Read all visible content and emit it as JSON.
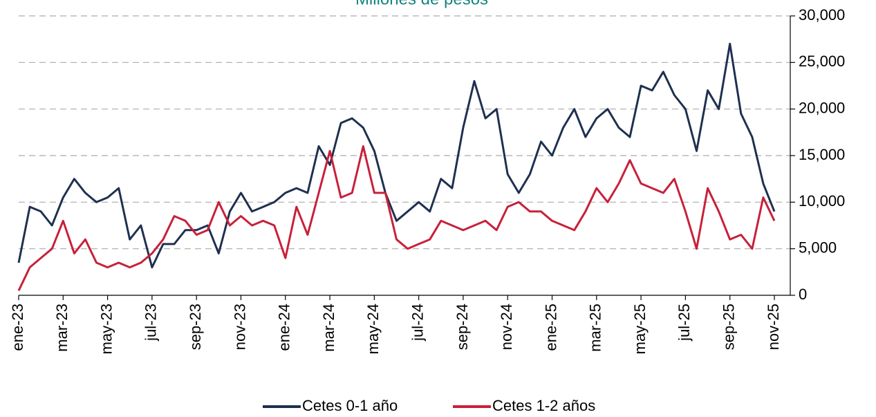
{
  "chart_data": {
    "type": "line",
    "title": "Millones de pesos",
    "categories": [
      "ene-23",
      null,
      null,
      null,
      "mar-23",
      null,
      null,
      null,
      "may-23",
      null,
      null,
      null,
      "jul-23",
      null,
      null,
      null,
      "sep-23",
      null,
      null,
      null,
      "nov-23",
      null,
      null,
      null,
      "ene-24",
      null,
      null,
      null,
      "mar-24",
      null,
      null,
      null,
      "may-24",
      null,
      null,
      null,
      "jul-24",
      null,
      null,
      null,
      "sep-24",
      null,
      null,
      null,
      "nov-24",
      null,
      null,
      null,
      "ene-25",
      null,
      null,
      null,
      "mar-25",
      null,
      null,
      null,
      "may-25",
      null,
      null,
      null,
      "jul-25",
      null,
      null,
      null,
      "sep-25",
      null,
      null,
      null,
      "nov-25"
    ],
    "series": [
      {
        "name": "Cetes 0-1 año",
        "color": "#1f3050",
        "values": [
          3500,
          9500,
          9000,
          7500,
          10500,
          12500,
          11000,
          10000,
          10500,
          11500,
          6000,
          7500,
          3000,
          5500,
          5500,
          7000,
          7000,
          7500,
          4500,
          9000,
          11000,
          9000,
          9500,
          10000,
          11000,
          11500,
          11000,
          16000,
          14000,
          18500,
          19000,
          18000,
          15500,
          11000,
          8000,
          9000,
          10000,
          9000,
          12500,
          11500,
          18000,
          23000,
          19000,
          20000,
          13000,
          11000,
          13000,
          16500,
          15000,
          18000,
          20000,
          17000,
          19000,
          20000,
          18000,
          17000,
          22500,
          22000,
          24000,
          21500,
          20000,
          15500,
          22000,
          20000,
          27000,
          19500,
          17000,
          12000,
          9000
        ]
      },
      {
        "name": "Cetes 1-2 años",
        "color": "#c8203a",
        "values": [
          500,
          3000,
          4000,
          5000,
          8000,
          4500,
          6000,
          3500,
          3000,
          3500,
          3000,
          3500,
          4500,
          6000,
          8500,
          8000,
          6500,
          7000,
          10000,
          7500,
          8500,
          7500,
          8000,
          7500,
          4000,
          9500,
          6500,
          11000,
          15500,
          10500,
          11000,
          16000,
          11000,
          11000,
          6000,
          5000,
          5500,
          6000,
          8000,
          7500,
          7000,
          7500,
          8000,
          7000,
          9500,
          10000,
          9000,
          9000,
          8000,
          7500,
          7000,
          9000,
          11500,
          10000,
          12000,
          14500,
          12000,
          11500,
          11000,
          12500,
          9000,
          5000,
          11500,
          9000,
          6000,
          6500,
          5000,
          10500,
          8000
        ]
      }
    ],
    "ylim": [
      0,
      30000
    ],
    "yticks": [
      0,
      {
        "value": 5000,
        "label": "5,000"
      },
      {
        "value": 10000,
        "label": "10,000"
      },
      {
        "value": 15000,
        "label": "15,000"
      },
      {
        "value": 20000,
        "label": "20,000"
      },
      {
        "value": 25000,
        "label": "25,000"
      },
      {
        "value": 30000,
        "label": "30,000"
      }
    ],
    "grid": true
  }
}
